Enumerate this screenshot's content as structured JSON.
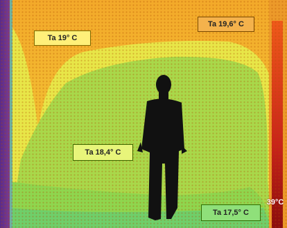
{
  "scene": {
    "colors": {
      "ceiling_warm": "#f3b12e",
      "room_yellow": "#e9e84a",
      "room_green": "#a7d64a",
      "floor_green": "#6fcf6a",
      "wall_purple": "#6a2c86",
      "heater_red": "#d53a1a",
      "silhouette": "#111111"
    },
    "labels": {
      "ceiling_left": "Ta 19° C",
      "ceiling_right": "Ta 19,6° C",
      "middle": "Ta 18,4° C",
      "floor": "Ta 17,5° C",
      "heater": "39°C"
    }
  }
}
